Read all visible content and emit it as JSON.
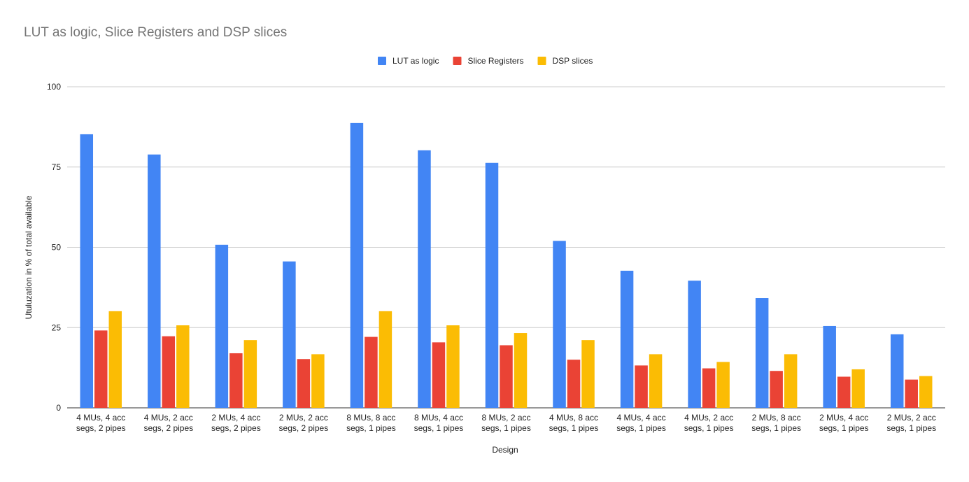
{
  "chart_data": {
    "type": "bar",
    "title": "LUT as logic, Slice Registers and DSP slices",
    "xlabel": "Design",
    "ylabel": "Utuluzation in % of total available",
    "ylim": [
      0,
      100
    ],
    "yticks": [
      0,
      25,
      50,
      75,
      100
    ],
    "grid": true,
    "legend_position": "top-center",
    "categories": [
      [
        "4 MUs, 4 acc",
        "segs, 2 pipes"
      ],
      [
        "4 MUs, 2 acc",
        "segs, 2 pipes"
      ],
      [
        "2 MUs, 4 acc",
        "segs, 2 pipes"
      ],
      [
        "2 MUs, 2 acc",
        "segs, 2 pipes"
      ],
      [
        "8 MUs, 8 acc",
        "segs, 1 pipes"
      ],
      [
        "8 MUs, 4 acc",
        "segs, 1 pipes"
      ],
      [
        "8 MUs, 2 acc",
        "segs, 1 pipes"
      ],
      [
        "4 MUs, 8 acc",
        "segs, 1 pipes"
      ],
      [
        "4 MUs, 4 acc",
        "segs, 1 pipes"
      ],
      [
        "4 MUs, 2 acc",
        "segs, 1 pipes"
      ],
      [
        "2 MUs, 8 acc",
        "segs, 1 pipes"
      ],
      [
        "2 MUs, 4 acc",
        "segs, 1 pipes"
      ],
      [
        "2 MUs, 2 acc",
        "segs, 1 pipes"
      ]
    ],
    "series": [
      {
        "name": "LUT as logic",
        "color": "#4285f4",
        "values": [
          85.2,
          78.9,
          50.8,
          45.6,
          88.7,
          80.2,
          76.3,
          52.0,
          42.7,
          39.6,
          34.2,
          25.5,
          22.9
        ]
      },
      {
        "name": "Slice Registers",
        "color": "#ea4335",
        "values": [
          24.1,
          22.3,
          17.0,
          15.2,
          22.1,
          20.4,
          19.5,
          15.0,
          13.2,
          12.3,
          11.5,
          9.7,
          8.8
        ]
      },
      {
        "name": "DSP slices",
        "color": "#fbbc04",
        "values": [
          30.1,
          25.7,
          21.1,
          16.7,
          30.1,
          25.7,
          23.3,
          21.1,
          16.7,
          14.3,
          16.7,
          12.0,
          9.9
        ]
      }
    ]
  }
}
